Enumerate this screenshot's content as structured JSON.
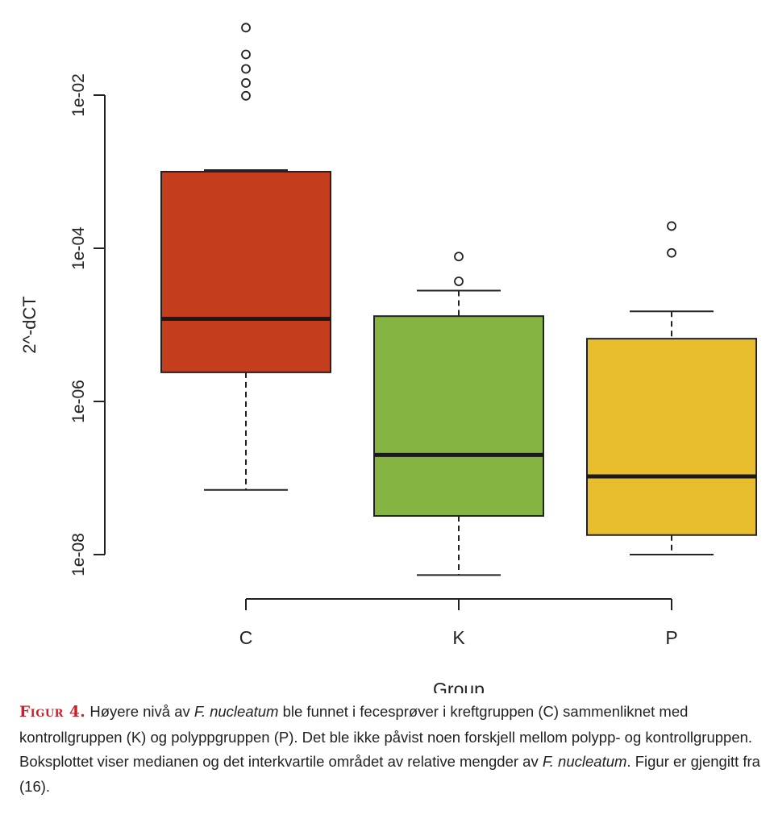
{
  "chart_data": {
    "type": "boxplot",
    "xlabel": "Group",
    "ylabel": "2^-dCT",
    "yscale": "log10",
    "ylim": [
      3e-09,
      0.13
    ],
    "yticks": [
      {
        "value": 0.01,
        "label": "1e-02"
      },
      {
        "value": 0.0001,
        "label": "1e-04"
      },
      {
        "value": 1e-06,
        "label": "1e-06"
      },
      {
        "value": 1e-08,
        "label": "1e-08"
      }
    ],
    "categories": [
      "C",
      "K",
      "P"
    ],
    "series": [
      {
        "name": "C",
        "color": "#c43e1d",
        "whisker_low": 7e-08,
        "q1": 2.4e-06,
        "median": 1.2e-05,
        "q3": 0.001,
        "whisker_high": 0.00105,
        "outliers": [
          0.0098,
          0.0144,
          0.022,
          0.034,
          0.076
        ]
      },
      {
        "name": "K",
        "color": "#86b443",
        "whisker_low": 5.4e-09,
        "q1": 3.2e-08,
        "median": 2e-07,
        "q3": 1.3e-05,
        "whisker_high": 2.8e-05,
        "outliers": [
          3.7e-05,
          7.8e-05
        ]
      },
      {
        "name": "P",
        "color": "#e9be2e",
        "whisker_low": 1e-08,
        "q1": 1.8e-08,
        "median": 1.05e-07,
        "q3": 6.6e-06,
        "whisker_high": 1.5e-05,
        "outliers": [
          8.7e-05,
          0.000195
        ]
      }
    ]
  },
  "caption": {
    "label": "Figur 4.",
    "parts": [
      " Høyere nivå av ",
      "F. nucleatum",
      " ble funnet i fecesprøver i kreftgruppen (C) sammenliknet med kontrollgruppen (K) og polyppgruppen (P). Det ble ikke påvist noen forskjell mellom polypp- og kontrollgruppen. Boksplottet viser medianen og det interkvartile området av relative mengder av ",
      "F. nucleatum",
      ". Figur er gjengitt fra (16)."
    ]
  }
}
